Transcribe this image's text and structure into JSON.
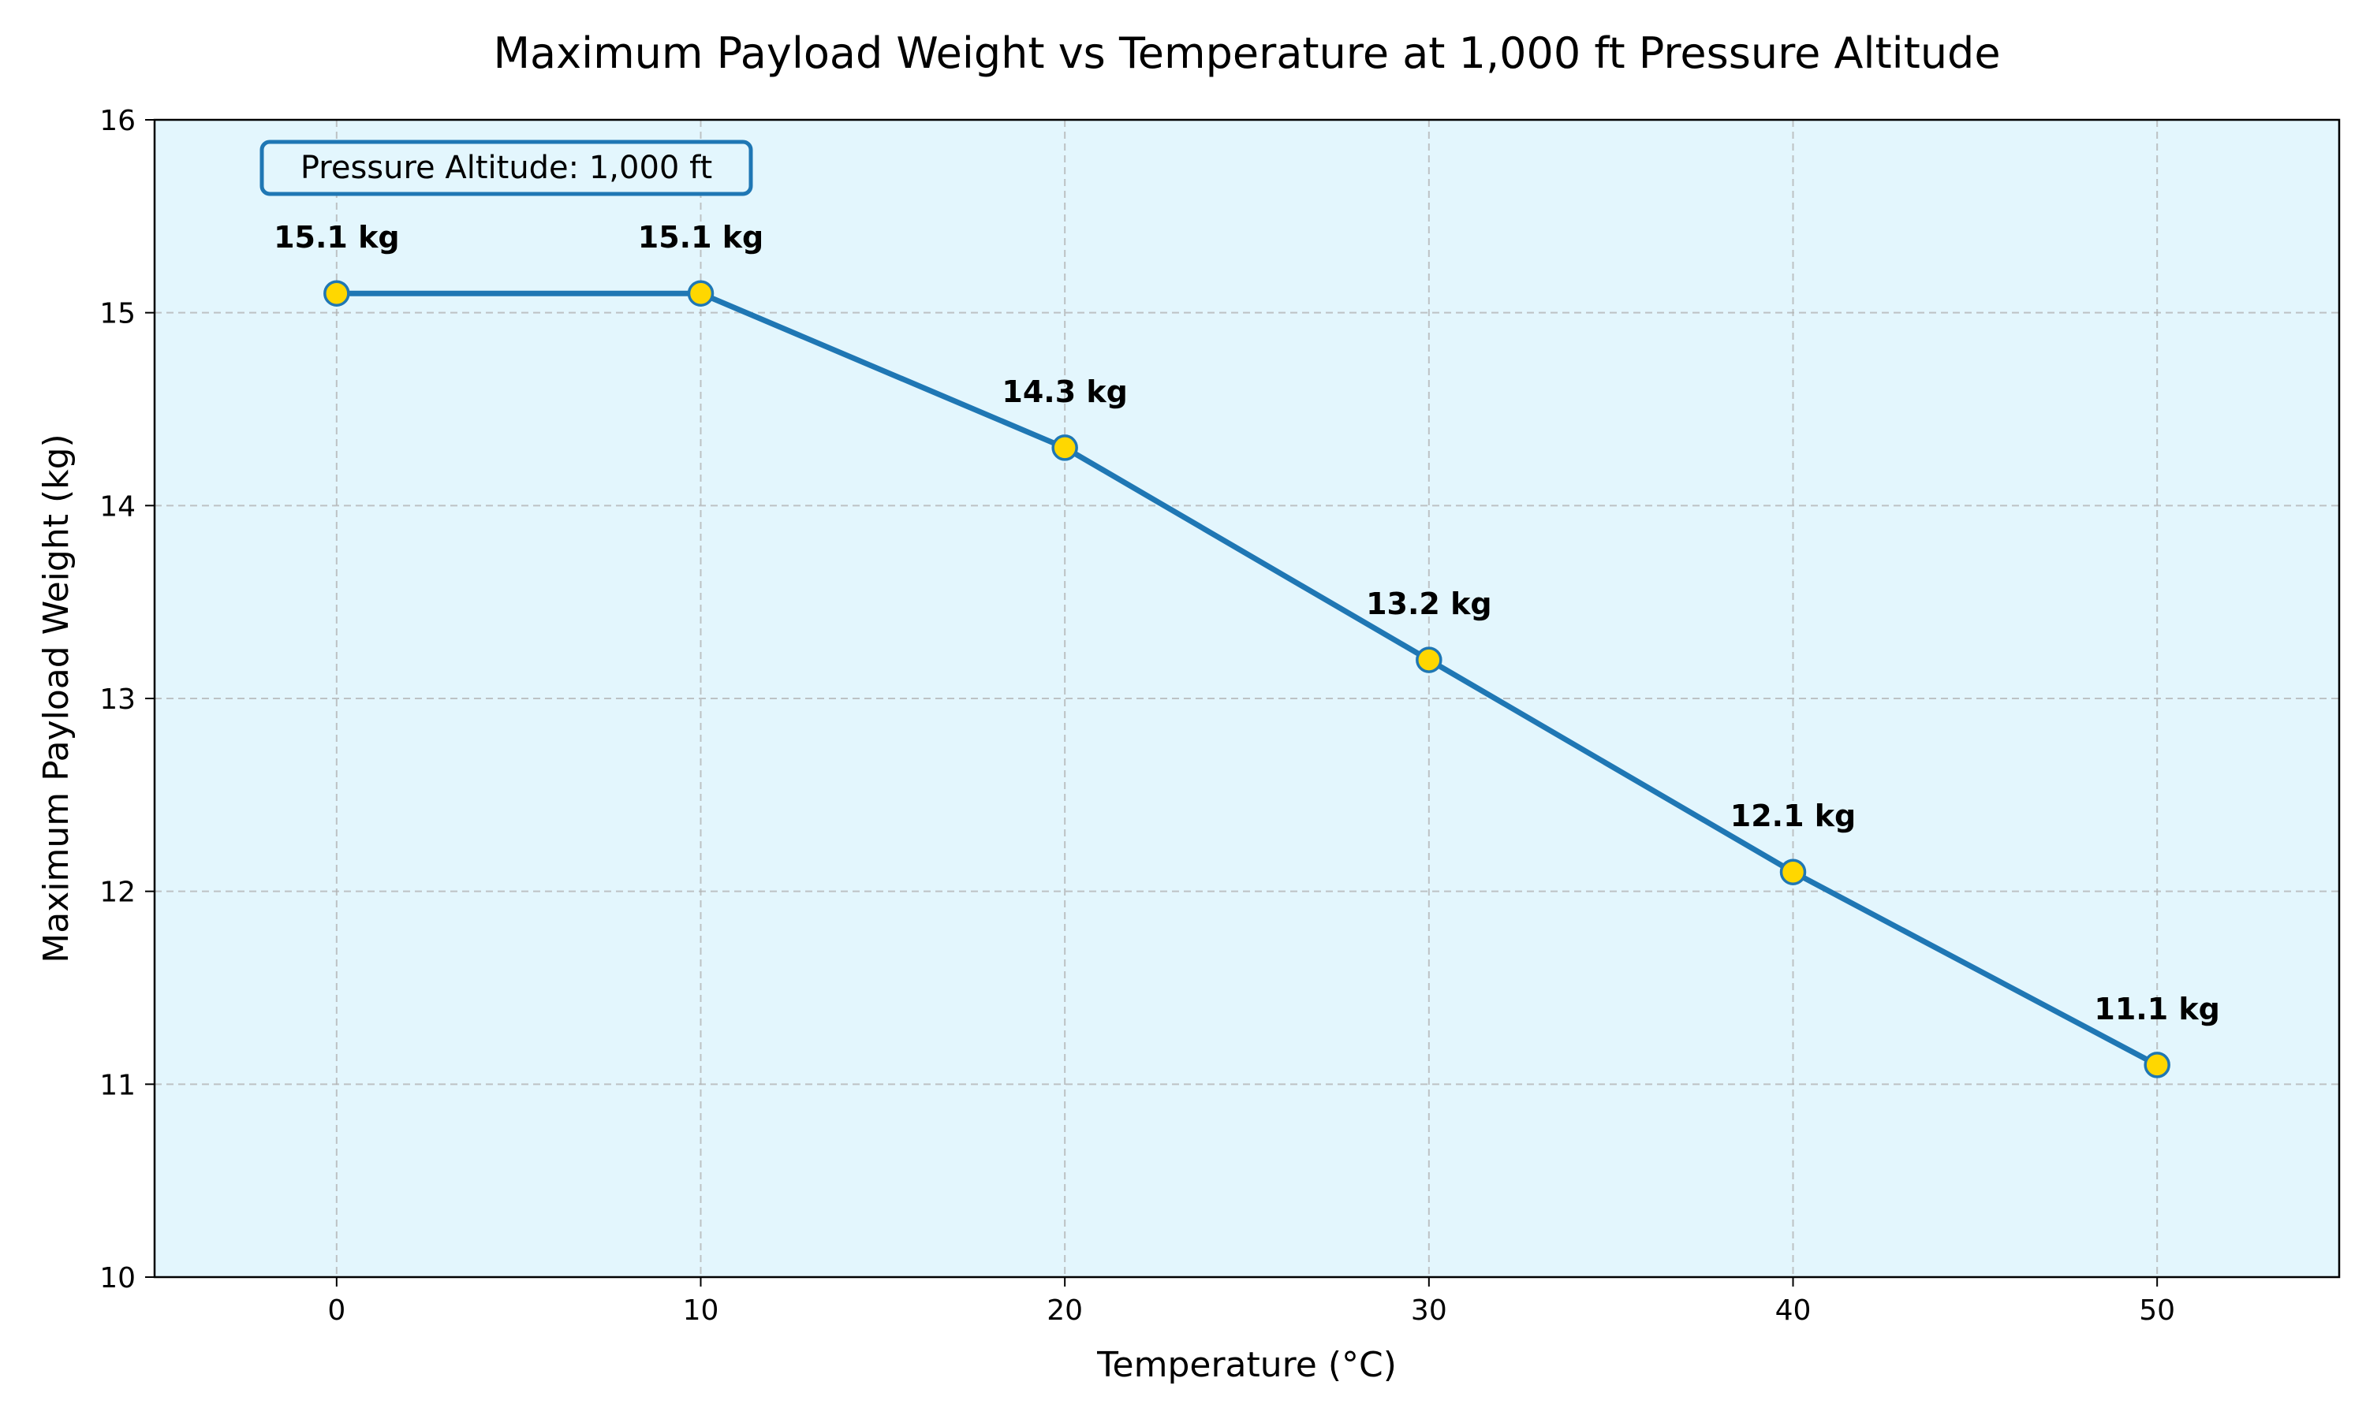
{
  "chart_data": {
    "type": "line",
    "title": "Maximum Payload Weight vs Temperature at 1,000 ft Pressure Altitude",
    "xlabel": "Temperature (°C)",
    "ylabel": "Maximum Payload Weight (kg)",
    "xlim": [
      -5,
      55
    ],
    "ylim": [
      10,
      16
    ],
    "x_ticks": [
      "0",
      "10",
      "20",
      "30",
      "40",
      "50"
    ],
    "y_ticks": [
      "10",
      "11",
      "12",
      "13",
      "14",
      "15",
      "16"
    ],
    "grid": true,
    "plot_background": "#e3f6fd",
    "line_color": "#1f77b4",
    "marker_color": "#ffd700",
    "x": [
      0,
      10,
      20,
      30,
      40,
      50
    ],
    "series": [
      {
        "values": [
          15.1,
          15.1,
          14.3,
          13.2,
          12.1,
          11.1
        ],
        "data_labels": [
          "15.1 kg",
          "15.1 kg",
          "14.3 kg",
          "13.2 kg",
          "12.1 kg",
          "11.1 kg"
        ]
      }
    ],
    "annotation": "Pressure Altitude: 1,000 ft",
    "annotation_position": "top-left"
  }
}
